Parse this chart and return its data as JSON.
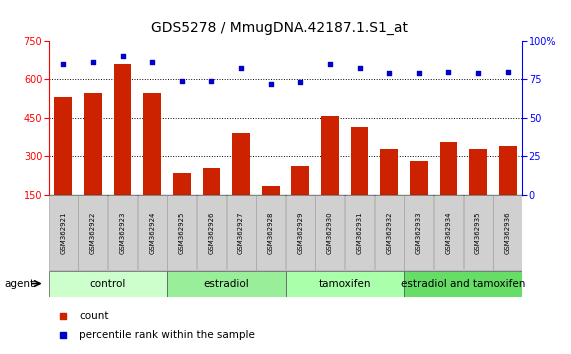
{
  "title": "GDS5278 / MmugDNA.42187.1.S1_at",
  "samples": [
    "GSM362921",
    "GSM362922",
    "GSM362923",
    "GSM362924",
    "GSM362925",
    "GSM362926",
    "GSM362927",
    "GSM362928",
    "GSM362929",
    "GSM362930",
    "GSM362931",
    "GSM362932",
    "GSM362933",
    "GSM362934",
    "GSM362935",
    "GSM362936"
  ],
  "counts": [
    530,
    548,
    660,
    548,
    235,
    255,
    390,
    185,
    260,
    455,
    415,
    330,
    280,
    355,
    330,
    340
  ],
  "percentile_ranks": [
    85,
    86,
    90,
    86,
    74,
    74,
    82,
    72,
    73,
    85,
    82,
    79,
    79,
    80,
    79,
    80
  ],
  "groups": [
    {
      "label": "control",
      "start": 0,
      "end": 4,
      "color": "#ccffcc"
    },
    {
      "label": "estradiol",
      "start": 4,
      "end": 8,
      "color": "#99ee99"
    },
    {
      "label": "tamoxifen",
      "start": 8,
      "end": 12,
      "color": "#aaffaa"
    },
    {
      "label": "estradiol and tamoxifen",
      "start": 12,
      "end": 16,
      "color": "#66dd66"
    }
  ],
  "ylim_left": [
    150,
    750
  ],
  "ylim_right": [
    0,
    100
  ],
  "yticks_left": [
    150,
    300,
    450,
    600,
    750
  ],
  "yticks_right": [
    0,
    25,
    50,
    75,
    100
  ],
  "bar_color": "#cc2200",
  "dot_color": "#0000cc",
  "bar_width": 0.6,
  "agent_label": "agent",
  "legend_count": "count",
  "legend_pct": "percentile rank within the sample",
  "title_fontsize": 10,
  "tick_fontsize": 7,
  "group_label_fontsize": 7.5,
  "sample_fontsize": 5.0
}
